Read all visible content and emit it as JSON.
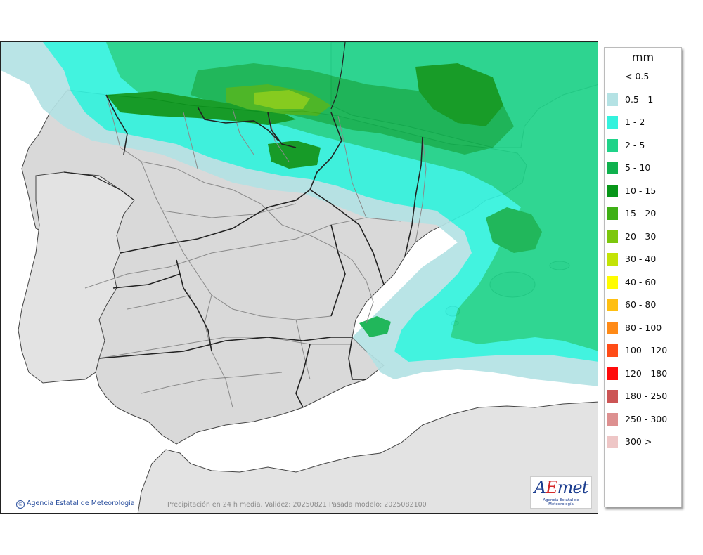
{
  "legend": {
    "unit": "mm",
    "items": [
      {
        "label": "< 0.5",
        "color": "#ffffff"
      },
      {
        "label": "0.5 - 1",
        "color": "#b4e2e4"
      },
      {
        "label": "1 - 2",
        "color": "#33f2dd"
      },
      {
        "label": "2 - 5",
        "color": "#1fd389"
      },
      {
        "label": "5 - 10",
        "color": "#0fb14e"
      },
      {
        "label": "10 - 15",
        "color": "#079619"
      },
      {
        "label": "15 - 20",
        "color": "#3fb016"
      },
      {
        "label": "20 - 30",
        "color": "#7cc70d"
      },
      {
        "label": "30 - 40",
        "color": "#c3e306"
      },
      {
        "label": "40 - 60",
        "color": "#fffc00"
      },
      {
        "label": "60 - 80",
        "color": "#ffbf11"
      },
      {
        "label": "80 - 100",
        "color": "#ff8a17"
      },
      {
        "label": "100 - 120",
        "color": "#ff4c17"
      },
      {
        "label": "120 - 180",
        "color": "#ff0b0b"
      },
      {
        "label": "180 - 250",
        "color": "#cc5555"
      },
      {
        "label": "250 - 300",
        "color": "#dd9090"
      },
      {
        "label": "300 >",
        "color": "#eec6c6"
      }
    ]
  },
  "footer": {
    "copyright": "Agencia Estatal de Meteorología",
    "caption": "Precipitación en 24 h media. Validez: 20250821 Pasada modelo: 2025082100"
  },
  "logo": {
    "name": "AEmet",
    "subtitle": "Agencia Estatal de Meteorología"
  },
  "colors": {
    "land": "#d9d9d9",
    "sea": "#ffffff",
    "border": "#222222",
    "region_border": "#8a8a8a"
  }
}
